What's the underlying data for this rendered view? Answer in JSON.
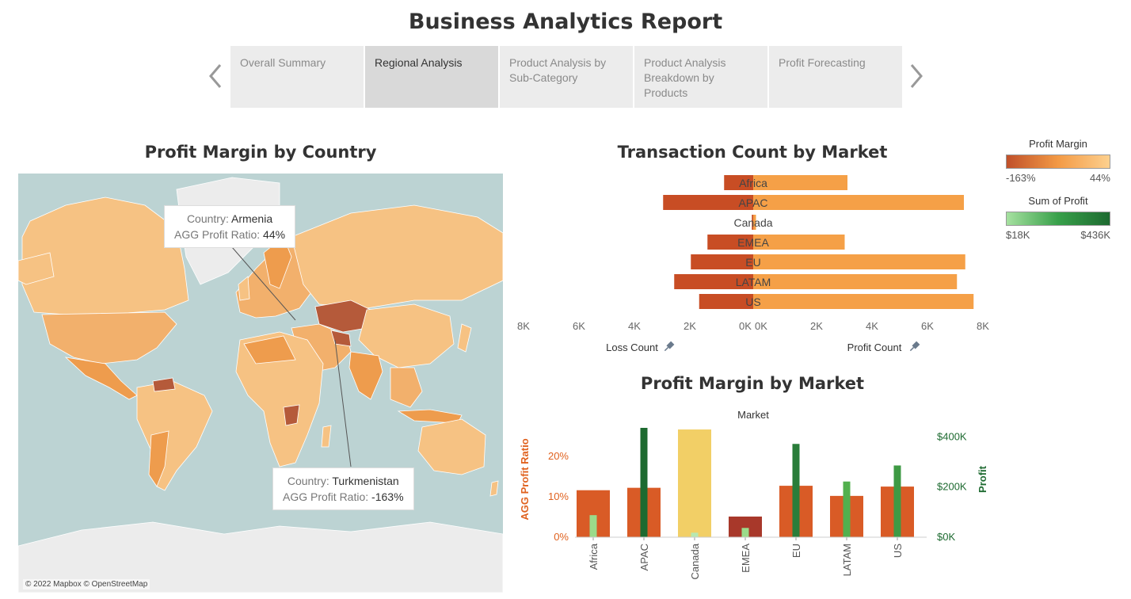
{
  "header": {
    "title": "Business Analytics Report"
  },
  "tabs": [
    {
      "label": "Overall Summary",
      "active": false
    },
    {
      "label": "Regional Analysis",
      "active": true
    },
    {
      "label": "Product Analysis by Sub-Category",
      "active": false
    },
    {
      "label": "Product Analysis Breakdown by Products",
      "active": false
    },
    {
      "label": "Profit Forecasting",
      "active": false
    }
  ],
  "map_panel": {
    "title": "Profit Margin by Country",
    "credit": "© 2022 Mapbox © OpenStreetMap",
    "tooltip1": {
      "country_label": "Country:",
      "country": "Armenia",
      "ratio_label": "AGG Profit Ratio:",
      "ratio": "44%"
    },
    "tooltip2": {
      "country_label": "Country:",
      "country": "Turkmenistan",
      "ratio_label": "AGG Profit Ratio:",
      "ratio": "-163%"
    },
    "colors": {
      "ocean": "#bcd3d3",
      "land_light": "#f6c283",
      "land_mid": "#ee9c4d",
      "land_dark": "#b55a3a",
      "land_none": "#ececec"
    }
  },
  "legends": {
    "margin": {
      "title": "Profit Margin",
      "min": "-163%",
      "max": "44%",
      "colors": [
        "#c0502a",
        "#f39a45",
        "#fdd08e"
      ]
    },
    "profit": {
      "title": "Sum of Profit",
      "min": "$18K",
      "max": "$436K",
      "colors": [
        "#a6e1a0",
        "#38a04a",
        "#1d6a30"
      ]
    }
  },
  "chart_data": [
    {
      "type": "bar",
      "title": "Transaction Count by Market",
      "orientation": "horizontal-diverging",
      "categories": [
        "Africa",
        "APAC",
        "Canada",
        "EMEA",
        "EU",
        "LATAM",
        "US"
      ],
      "series": [
        {
          "name": "Loss Count",
          "values": [
            1050,
            3250,
            50,
            1650,
            2250,
            2850,
            1950
          ],
          "color": "#c84d24"
        },
        {
          "name": "Profit Count",
          "values": [
            3400,
            7600,
            100,
            3300,
            7650,
            7350,
            7950
          ],
          "color": "#f5a047"
        }
      ],
      "x_ticks_left": [
        "8K",
        "6K",
        "4K",
        "2K",
        "0K"
      ],
      "x_ticks_right": [
        "0K",
        "2K",
        "4K",
        "6K",
        "8K"
      ],
      "xlim": [
        0,
        8000
      ]
    },
    {
      "type": "bar",
      "title": "Profit Margin by Market",
      "subtitle": "Market",
      "categories": [
        "Africa",
        "APAC",
        "Canada",
        "EMEA",
        "EU",
        "LATAM",
        "US"
      ],
      "series": [
        {
          "name": "AGG Profit Ratio",
          "axis": "left",
          "values": [
            11.6,
            12.2,
            26.6,
            5.1,
            12.7,
            10.2,
            12.5
          ],
          "colors": [
            "#d95b26",
            "#d95b26",
            "#f2cf66",
            "#a8382a",
            "#d95b26",
            "#d95b26",
            "#d95b26"
          ]
        },
        {
          "name": "Profit",
          "axis": "right",
          "values": [
            88,
            436,
            18,
            37,
            372,
            222,
            286
          ],
          "colors": [
            "#9bdb8a",
            "#1d6a30",
            "#b8e8b0",
            "#9bdb8a",
            "#2a7d3a",
            "#52b04e",
            "#3e9a44"
          ]
        }
      ],
      "ylabel_left": "AGG Profit Ratio",
      "ylabel_right": "Profit",
      "y_ticks_left": [
        "0%",
        "10%",
        "20%"
      ],
      "y_ticks_right": [
        "$0K",
        "$200K",
        "$400K"
      ],
      "ylim_left": [
        0,
        27
      ],
      "ylim_right": [
        0,
        436
      ]
    }
  ],
  "transaction_labels": {
    "loss": "Loss Count",
    "profit": "Profit Count"
  }
}
